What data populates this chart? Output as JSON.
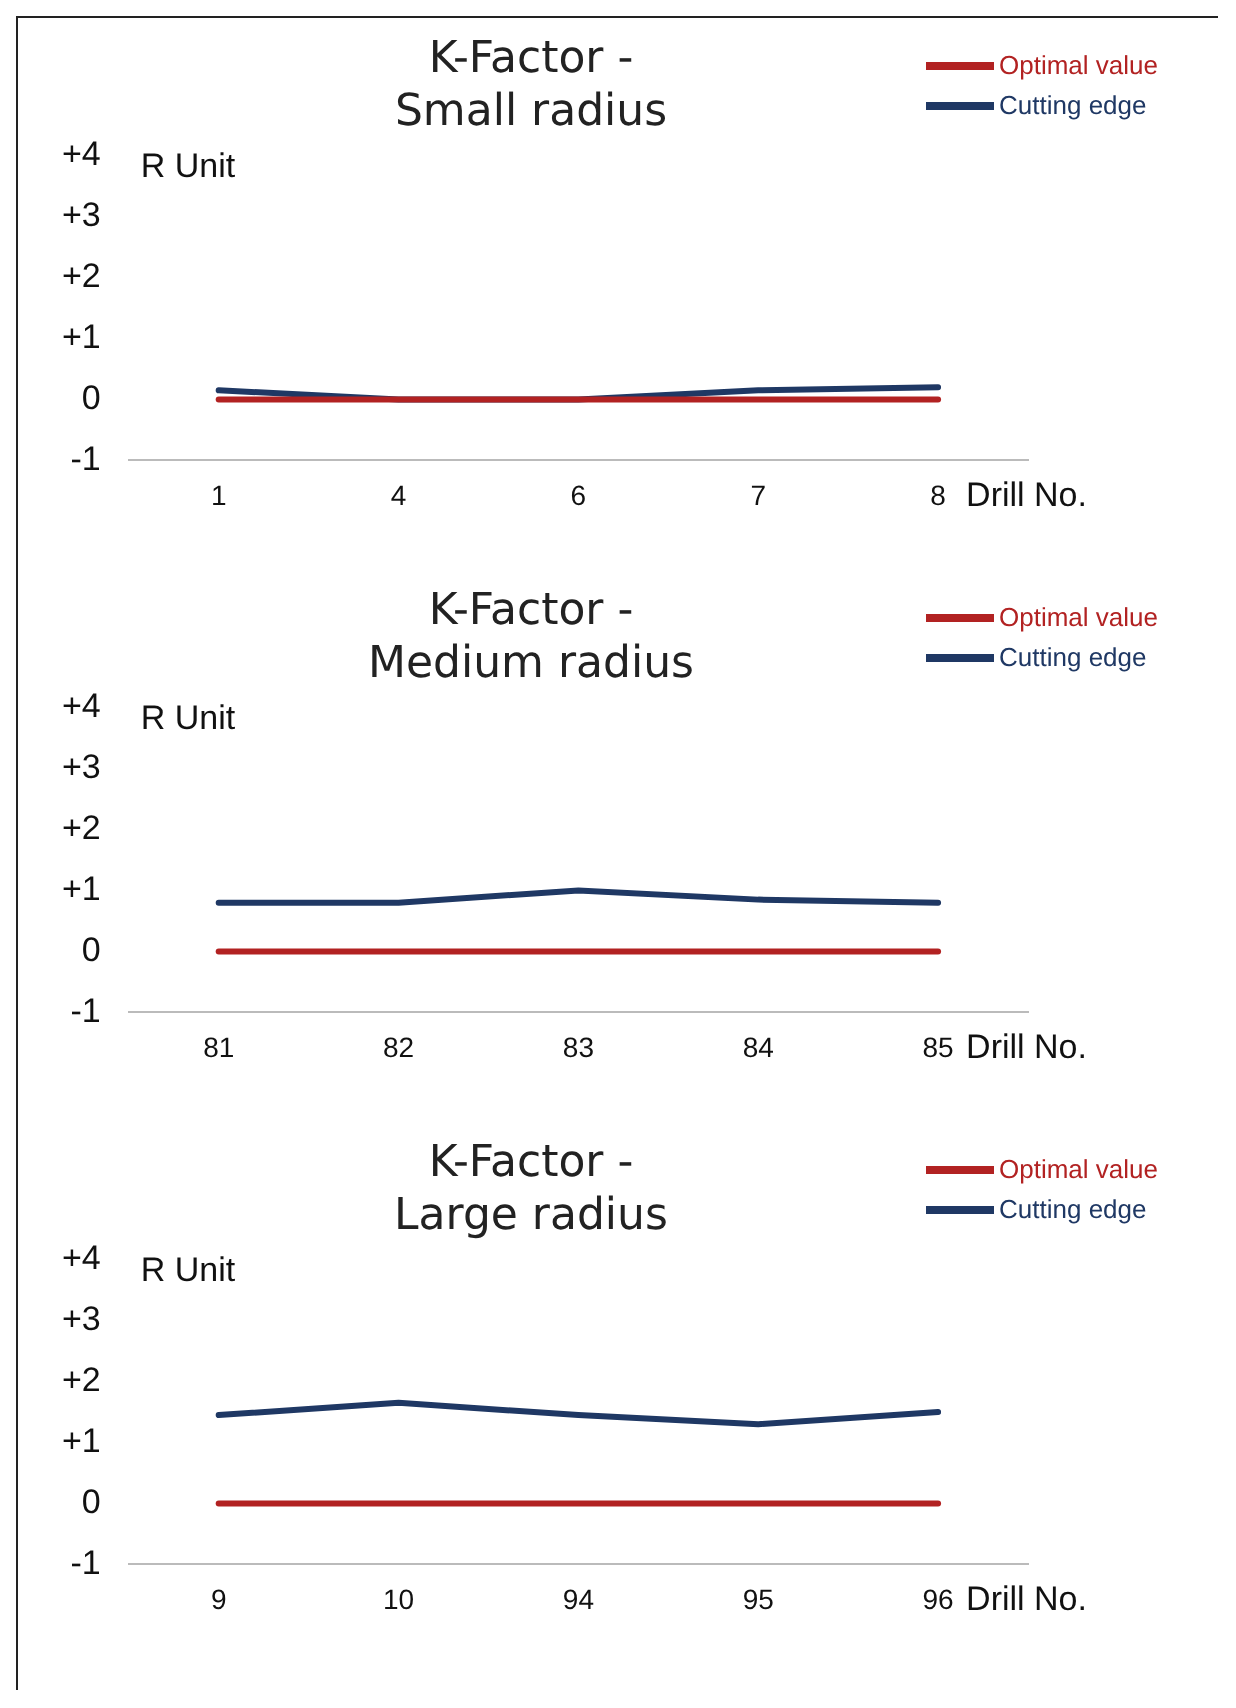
{
  "chart_data": [
    {
      "type": "line",
      "title": "K-Factor -\nSmall radius",
      "ylabel": "R Unit",
      "xlabel": "Drill No.",
      "categories": [
        "1",
        "4",
        "6",
        "7",
        "8"
      ],
      "series": [
        {
          "name": "Optimal value",
          "color": "#b22222",
          "values": [
            0,
            0,
            0,
            0,
            0
          ]
        },
        {
          "name": "Cutting edge",
          "color": "#1f3864",
          "values": [
            0.15,
            0,
            0,
            0.15,
            0.2
          ]
        }
      ],
      "ylim": [
        -1,
        4
      ],
      "yticks": [
        {
          "value": -1,
          "label": "-1"
        },
        {
          "value": 0,
          "label": "0"
        },
        {
          "value": 1,
          "label": "+1"
        },
        {
          "value": 2,
          "label": "+2"
        },
        {
          "value": 3,
          "label": "+3"
        },
        {
          "value": 4,
          "label": "+4"
        }
      ],
      "legend": "top right",
      "marker": "none"
    },
    {
      "type": "line",
      "title": "K-Factor -\nMedium radius",
      "ylabel": "R Unit",
      "xlabel": "Drill No.",
      "categories": [
        "81",
        "82",
        "83",
        "84",
        "85"
      ],
      "series": [
        {
          "name": "Optimal value",
          "color": "#b22222",
          "values": [
            0,
            0,
            0,
            0,
            0
          ]
        },
        {
          "name": "Cutting edge",
          "color": "#1f3864",
          "values": [
            0.8,
            0.8,
            1.0,
            0.85,
            0.8
          ]
        }
      ],
      "ylim": [
        -1,
        4
      ],
      "yticks": [
        {
          "value": -1,
          "label": "-1"
        },
        {
          "value": 0,
          "label": "0"
        },
        {
          "value": 1,
          "label": "+1"
        },
        {
          "value": 2,
          "label": "+2"
        },
        {
          "value": 3,
          "label": "+3"
        },
        {
          "value": 4,
          "label": "+4"
        }
      ],
      "legend": "top right",
      "marker": "none"
    },
    {
      "type": "line",
      "title": "K-Factor -\nLarge radius",
      "ylabel": "R Unit",
      "xlabel": "Drill No.",
      "categories": [
        "9",
        "10",
        "94",
        "95",
        "96"
      ],
      "series": [
        {
          "name": "Optimal value",
          "color": "#b22222",
          "values": [
            0,
            0,
            0,
            0,
            0
          ]
        },
        {
          "name": "Cutting edge",
          "color": "#1f3864",
          "values": [
            1.45,
            1.65,
            1.45,
            1.3,
            1.5
          ]
        }
      ],
      "ylim": [
        -1,
        4
      ],
      "yticks": [
        {
          "value": -1,
          "label": "-1"
        },
        {
          "value": 0,
          "label": "0"
        },
        {
          "value": 1,
          "label": "+1"
        },
        {
          "value": 2,
          "label": "+2"
        },
        {
          "value": 3,
          "label": "+3"
        },
        {
          "value": 4,
          "label": "+4"
        }
      ],
      "legend": "top right",
      "marker": "none"
    }
  ]
}
